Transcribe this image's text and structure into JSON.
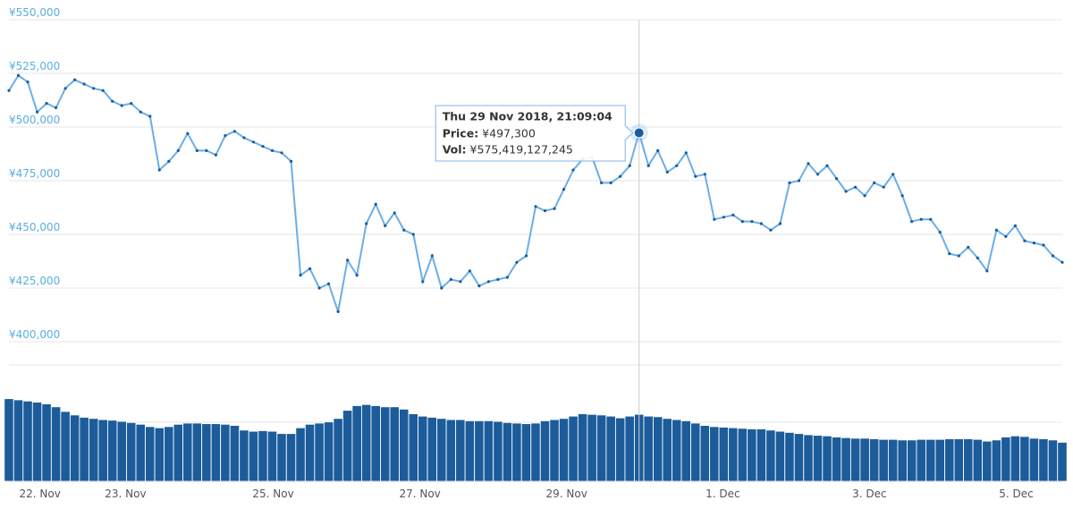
{
  "chart_data": {
    "type": "line",
    "series": [
      {
        "name": "Price",
        "color": "#6aaee8",
        "marker_color": "#1a5b99",
        "values": [
          517000,
          524000,
          521000,
          507000,
          511000,
          509000,
          518000,
          522000,
          520000,
          518000,
          517000,
          512000,
          510000,
          511000,
          507000,
          505000,
          480000,
          484000,
          489000,
          497000,
          489000,
          489000,
          487000,
          496000,
          498000,
          495000,
          493000,
          491000,
          489000,
          488000,
          484000,
          431000,
          434000,
          425000,
          427000,
          414000,
          438000,
          431000,
          455000,
          464000,
          454000,
          460000,
          452000,
          450000,
          428000,
          440000,
          425000,
          429000,
          428000,
          433000,
          426000,
          428000,
          429000,
          430000,
          437000,
          440000,
          463000,
          461000,
          462000,
          471000,
          480000,
          485000,
          486000,
          474000,
          474000,
          477000,
          482000,
          497300,
          482000,
          489000,
          479000,
          482000,
          488000,
          477000,
          478000,
          457000,
          458000,
          459000,
          456000,
          456000,
          455000,
          452000,
          455000,
          474000,
          475000,
          483000,
          478000,
          482000,
          476000,
          470000,
          472000,
          468000,
          474000,
          472000,
          478000,
          468000,
          456000,
          457000,
          457000,
          451000,
          441000,
          440000,
          444000,
          439000,
          433000,
          452000,
          449000,
          454000,
          447000,
          446000,
          445000,
          440000,
          437000
        ]
      },
      {
        "name": "Vol",
        "color": "#1c5c9a",
        "axis": "y2",
        "values": [
          710000000000,
          700000000000,
          690000000000,
          680000000000,
          665000000000,
          640000000000,
          600000000000,
          570000000000,
          550000000000,
          540000000000,
          530000000000,
          525000000000,
          515000000000,
          505000000000,
          490000000000,
          470000000000,
          460000000000,
          470000000000,
          490000000000,
          500000000000,
          500000000000,
          495000000000,
          495000000000,
          490000000000,
          480000000000,
          440000000000,
          430000000000,
          435000000000,
          430000000000,
          410000000000,
          410000000000,
          460000000000,
          490000000000,
          500000000000,
          510000000000,
          540000000000,
          610000000000,
          650000000000,
          660000000000,
          650000000000,
          640000000000,
          640000000000,
          620000000000,
          580000000000,
          560000000000,
          550000000000,
          540000000000,
          530000000000,
          530000000000,
          520000000000,
          520000000000,
          520000000000,
          515000000000,
          505000000000,
          500000000000,
          495000000000,
          500000000000,
          520000000000,
          530000000000,
          540000000000,
          560000000000,
          580000000000,
          575000000000,
          570000000000,
          560000000000,
          545000000000,
          560000000000,
          575419127245,
          560000000000,
          555000000000,
          540000000000,
          530000000000,
          520000000000,
          500000000000,
          480000000000,
          470000000000,
          465000000000,
          460000000000,
          455000000000,
          450000000000,
          450000000000,
          440000000000,
          430000000000,
          420000000000,
          410000000000,
          400000000000,
          395000000000,
          390000000000,
          380000000000,
          375000000000,
          370000000000,
          370000000000,
          365000000000,
          360000000000,
          360000000000,
          355000000000,
          355000000000,
          360000000000,
          360000000000,
          360000000000,
          365000000000,
          365000000000,
          365000000000,
          360000000000,
          345000000000,
          355000000000,
          380000000000,
          390000000000,
          385000000000,
          370000000000,
          365000000000,
          355000000000,
          335000000000
        ]
      }
    ],
    "xlim": [
      0,
      112
    ],
    "xticks": [
      {
        "value": 3.3,
        "label": "22. Nov"
      },
      {
        "value": 12.4,
        "label": "23. Nov"
      },
      {
        "value": 28.1,
        "label": "25. Nov"
      },
      {
        "value": 43.7,
        "label": "27. Nov"
      },
      {
        "value": 59.3,
        "label": "29. Nov"
      },
      {
        "value": 75.9,
        "label": "1. Dec"
      },
      {
        "value": 91.5,
        "label": "3. Dec"
      },
      {
        "value": 107.1,
        "label": "5. Dec"
      }
    ],
    "ylim": [
      400000,
      550000
    ],
    "yticks": [
      {
        "value": 400000,
        "label": "¥400,000"
      },
      {
        "value": 425000,
        "label": "¥425,000"
      },
      {
        "value": 450000,
        "label": "¥450,000"
      },
      {
        "value": 475000,
        "label": "¥475,000"
      },
      {
        "value": 500000,
        "label": "¥500,000"
      },
      {
        "value": 525000,
        "label": "¥525,000"
      },
      {
        "value": 550000,
        "label": "¥550,000"
      }
    ],
    "y2lim": [
      0,
      1000000000000
    ],
    "grid": true,
    "tooltip": {
      "title": "Thu 29 Nov 2018, 21:09:04",
      "price_label": "Price:",
      "price": "¥497,300",
      "vol_label": "Vol:",
      "vol": "¥575,419,127,245"
    }
  }
}
